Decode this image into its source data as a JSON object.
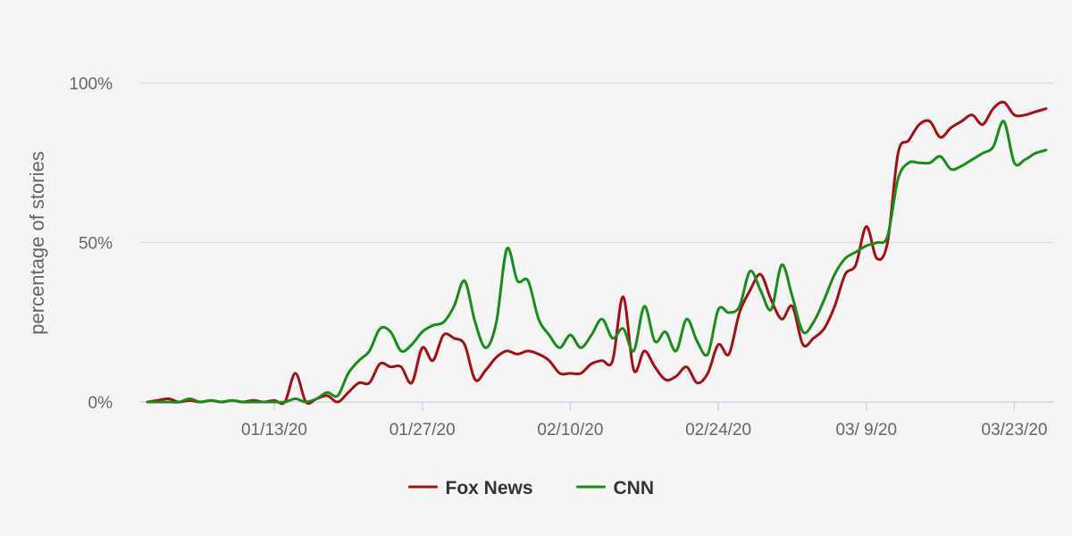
{
  "chart_data": {
    "type": "line",
    "ylabel": "percentage of stories",
    "xlabel": "",
    "ylim": [
      0,
      100
    ],
    "yticks": [
      0,
      50,
      100
    ],
    "ytick_labels": [
      "0%",
      "50%",
      "100%"
    ],
    "xlim": [
      "2020-01-01",
      "2020-03-27"
    ],
    "xticks": [
      "2020-01-13",
      "2020-01-27",
      "2020-02-10",
      "2020-02-24",
      "2020-03-09",
      "2020-03-23"
    ],
    "xtick_labels": [
      "01/13/20",
      "01/27/20",
      "02/10/20",
      "02/24/20",
      "03/ 9/20",
      "03/23/20"
    ],
    "grid": true,
    "legend_position": "bottom-center",
    "x": [
      "2020-01-01",
      "2020-01-02",
      "2020-01-03",
      "2020-01-04",
      "2020-01-05",
      "2020-01-06",
      "2020-01-07",
      "2020-01-08",
      "2020-01-09",
      "2020-01-10",
      "2020-01-11",
      "2020-01-12",
      "2020-01-13",
      "2020-01-14",
      "2020-01-15",
      "2020-01-16",
      "2020-01-17",
      "2020-01-18",
      "2020-01-19",
      "2020-01-20",
      "2020-01-21",
      "2020-01-22",
      "2020-01-23",
      "2020-01-24",
      "2020-01-25",
      "2020-01-26",
      "2020-01-27",
      "2020-01-28",
      "2020-01-29",
      "2020-01-30",
      "2020-01-31",
      "2020-02-01",
      "2020-02-02",
      "2020-02-03",
      "2020-02-04",
      "2020-02-05",
      "2020-02-06",
      "2020-02-07",
      "2020-02-08",
      "2020-02-09",
      "2020-02-10",
      "2020-02-11",
      "2020-02-12",
      "2020-02-13",
      "2020-02-14",
      "2020-02-15",
      "2020-02-16",
      "2020-02-17",
      "2020-02-18",
      "2020-02-19",
      "2020-02-20",
      "2020-02-21",
      "2020-02-22",
      "2020-02-23",
      "2020-02-24",
      "2020-02-25",
      "2020-02-26",
      "2020-02-27",
      "2020-02-28",
      "2020-02-29",
      "2020-03-01",
      "2020-03-02",
      "2020-03-03",
      "2020-03-04",
      "2020-03-05",
      "2020-03-06",
      "2020-03-07",
      "2020-03-08",
      "2020-03-09",
      "2020-03-10",
      "2020-03-11",
      "2020-03-12",
      "2020-03-13",
      "2020-03-14",
      "2020-03-15",
      "2020-03-16",
      "2020-03-17",
      "2020-03-18",
      "2020-03-19",
      "2020-03-20",
      "2020-03-21",
      "2020-03-22",
      "2020-03-23",
      "2020-03-24",
      "2020-03-25",
      "2020-03-26"
    ],
    "series": [
      {
        "name": "Fox News",
        "color": "#a50f15",
        "values": [
          0,
          0.5,
          1,
          0,
          0.5,
          0,
          0.5,
          0,
          0.5,
          0,
          0.5,
          0,
          0.5,
          0,
          9,
          0,
          1,
          2,
          0,
          3,
          6,
          6,
          12,
          11,
          11,
          6,
          17,
          13,
          21,
          20,
          18,
          7,
          10,
          14,
          16,
          15,
          16,
          15,
          13,
          9,
          9,
          9,
          12,
          13,
          13,
          33,
          10,
          16,
          11,
          7,
          8,
          11,
          6,
          9,
          18,
          15,
          28,
          35,
          40,
          32,
          26,
          30,
          18,
          20,
          23,
          30,
          40,
          43,
          55,
          45,
          50,
          78,
          82,
          87,
          88,
          83,
          86,
          88,
          90,
          87,
          92,
          94,
          90,
          90,
          91,
          92
        ]
      },
      {
        "name": "CNN",
        "color": "#1a8c1a",
        "values": [
          0,
          0,
          0,
          0,
          1,
          0,
          0.5,
          0,
          0.5,
          0,
          0,
          0,
          0,
          0,
          1,
          0,
          1,
          3,
          2,
          9,
          13,
          16,
          23,
          22,
          16,
          18,
          22,
          24,
          25,
          30,
          38,
          25,
          17,
          25,
          48,
          38,
          38,
          26,
          21,
          17,
          21,
          17,
          21,
          26,
          20,
          23,
          16,
          30,
          19,
          22,
          16,
          26,
          19,
          15,
          29,
          28,
          30,
          41,
          35,
          29,
          43,
          33,
          22,
          25,
          32,
          40,
          45,
          47,
          49,
          50,
          52,
          70,
          75,
          75,
          75,
          77,
          73,
          74,
          76,
          78,
          80,
          88,
          75,
          76,
          78,
          79
        ]
      }
    ]
  }
}
